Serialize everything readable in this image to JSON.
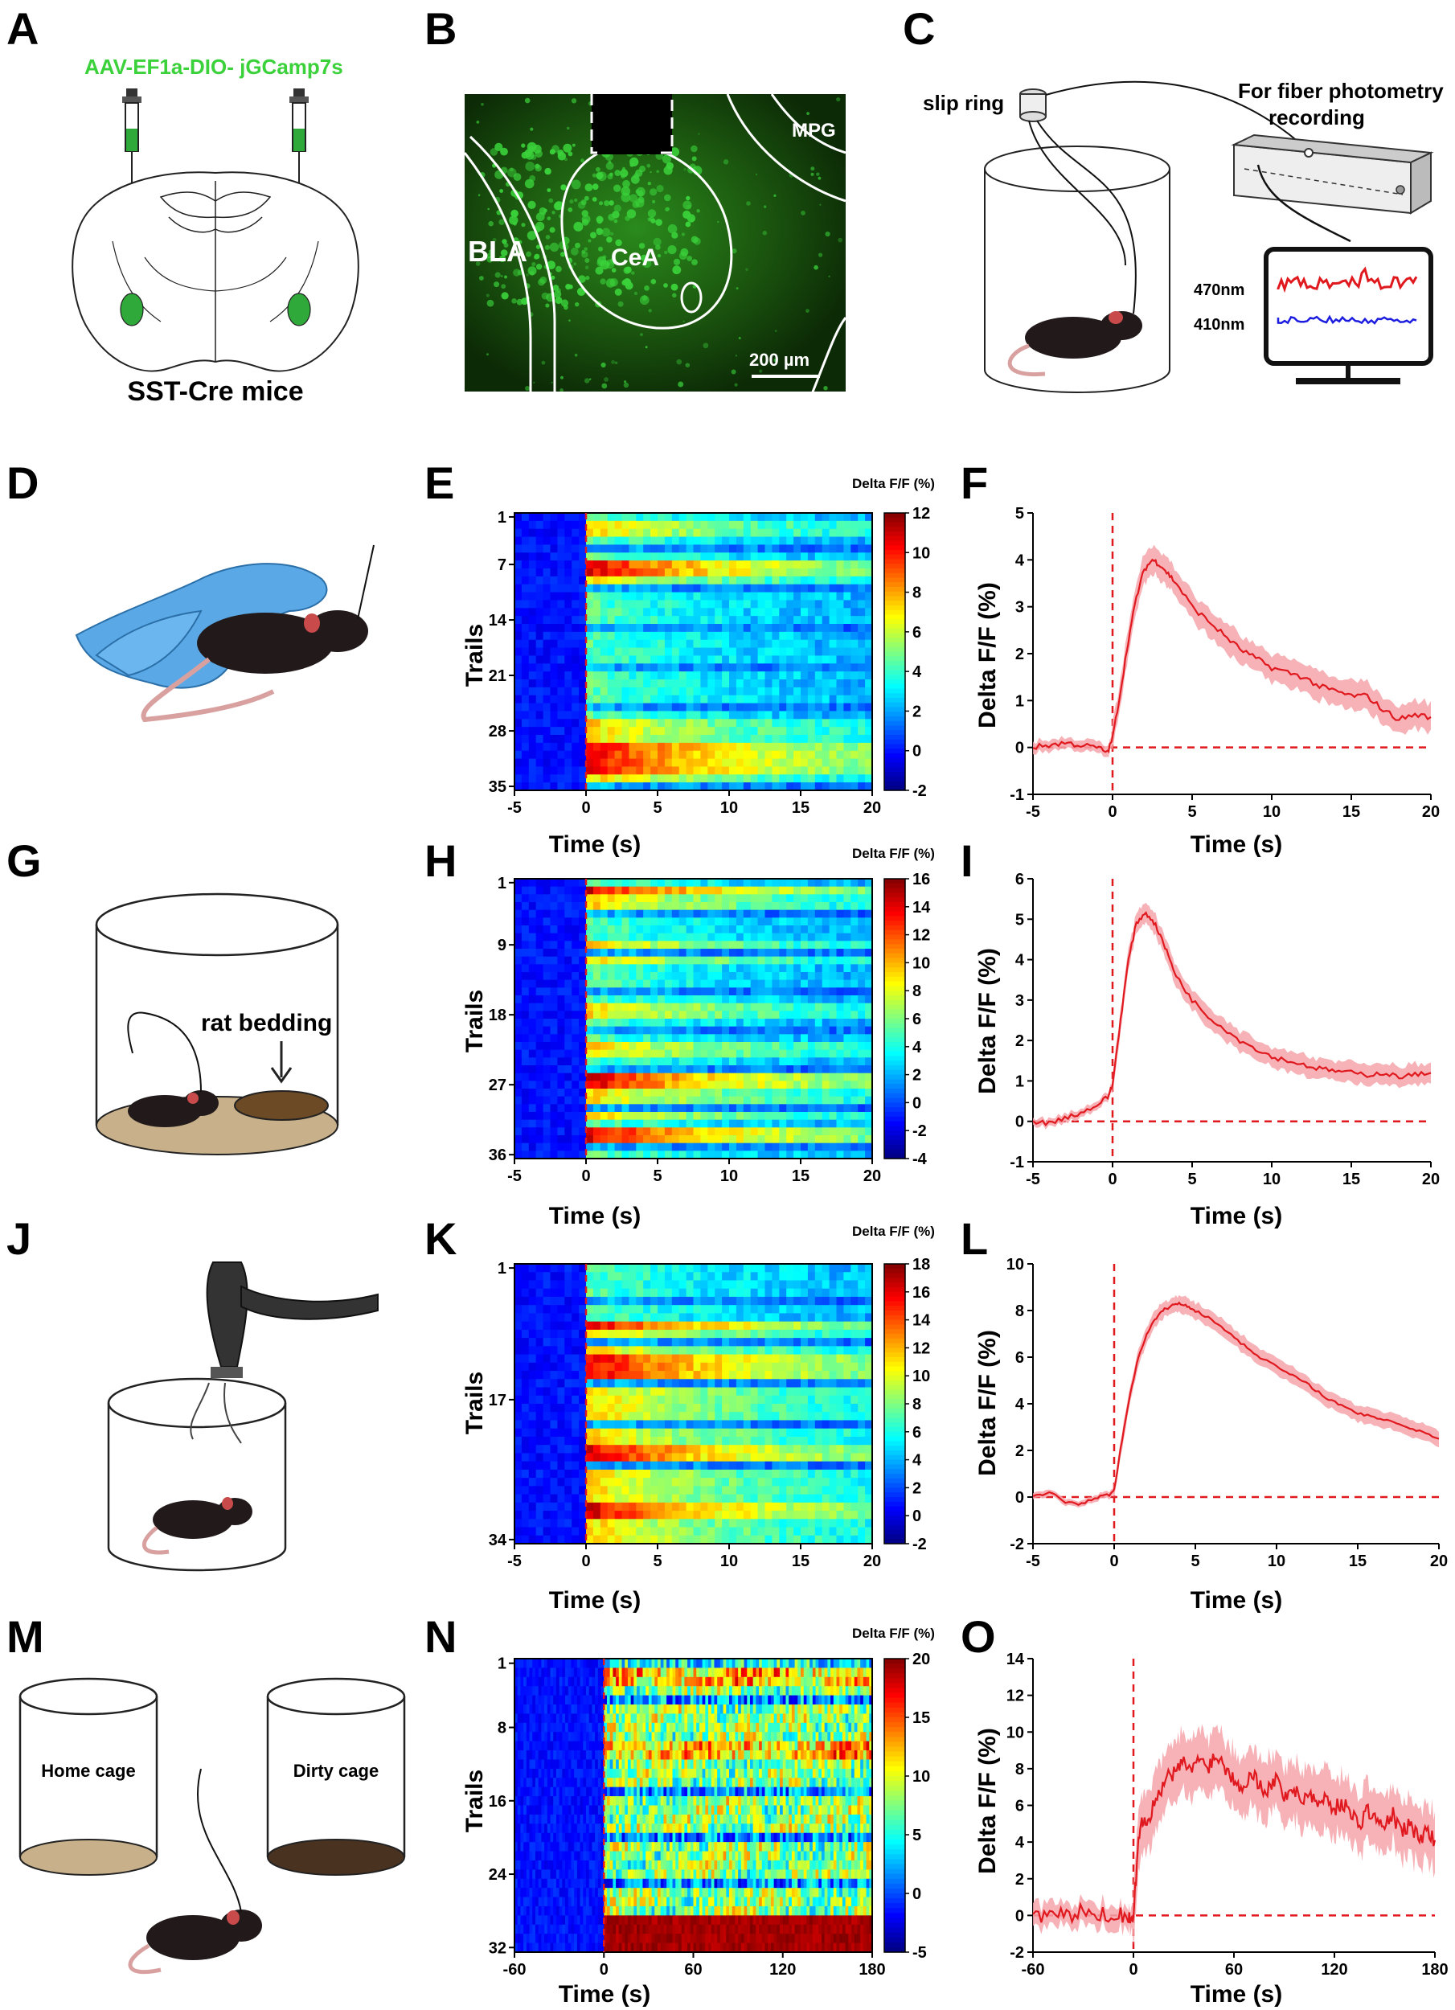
{
  "figure": {
    "panel_labels": [
      "A",
      "B",
      "C",
      "D",
      "E",
      "F",
      "G",
      "H",
      "I",
      "J",
      "K",
      "L",
      "M",
      "N",
      "O"
    ],
    "panel_a": {
      "virus": "AAV-EF1a-DIO- jGCamp7s",
      "mice": "SST-Cre mice"
    },
    "panel_b": {
      "regions": [
        "BLA",
        "CeA",
        "MPG"
      ],
      "scale_bar": "200 µm"
    },
    "panel_c": {
      "slip_ring": "slip ring",
      "recording_line1": "For fiber photometry",
      "recording_line2": "recording",
      "wavelength_470": "470nm",
      "wavelength_410": "410nm"
    },
    "panel_g": {
      "bedding": "rat bedding"
    },
    "panel_m": {
      "home": "Home cage",
      "dirty": "Dirty cage"
    },
    "colors": {
      "trace": "#e0191f",
      "band": "#f4a5aa",
      "dashed": "#e0191f",
      "cell_green": "#3ad13a"
    }
  },
  "chart_data": [
    {
      "id": "E",
      "type": "heatmap",
      "title": "",
      "colorbar_label": "Delta F/F (%)",
      "xlabel": "Time (s)",
      "ylabel": "Trails",
      "x_ticks": [
        "-5",
        "0",
        "5",
        "10",
        "15",
        "20"
      ],
      "y_ticks": [
        "1",
        "7",
        "14",
        "21",
        "28",
        "35"
      ],
      "colorbar_ticks": [
        "12",
        "10",
        "8",
        "6",
        "4",
        "2",
        "0",
        "-2"
      ],
      "xlim": [
        -5,
        20
      ],
      "ylim": [
        1,
        35
      ],
      "zlim": [
        -2,
        12
      ],
      "onset": 0
    },
    {
      "id": "F",
      "type": "line",
      "xlabel": "Time (s)",
      "ylabel": "Delta F/F (%)",
      "xlim": [
        -5,
        20
      ],
      "ylim": [
        -1,
        5
      ],
      "x_ticks": [
        "-5",
        "0",
        "5",
        "10",
        "15",
        "20"
      ],
      "y_ticks": [
        "-1",
        "0",
        "1",
        "2",
        "3",
        "4",
        "5"
      ],
      "series": [
        {
          "name": "mean",
          "x": [
            -5,
            -4,
            -3,
            -2,
            -1,
            -0.3,
            0,
            0.5,
            1,
            1.5,
            2,
            2.5,
            3,
            3.5,
            4,
            5,
            6,
            7,
            8,
            9,
            10,
            11,
            12,
            13,
            14,
            15,
            16,
            17,
            18,
            19,
            20
          ],
          "y": [
            0,
            0.05,
            0.1,
            0.05,
            0,
            -0.1,
            0.2,
            1.2,
            2.3,
            3.2,
            3.8,
            4.0,
            3.9,
            3.7,
            3.5,
            3.0,
            2.7,
            2.4,
            2.1,
            1.9,
            1.7,
            1.6,
            1.5,
            1.3,
            1.2,
            1.1,
            1.1,
            0.8,
            0.6,
            0.7,
            0.65
          ],
          "sem": 0.3
        }
      ]
    },
    {
      "id": "H",
      "type": "heatmap",
      "colorbar_label": "Delta F/F (%)",
      "xlabel": "Time (s)",
      "ylabel": "Trails",
      "x_ticks": [
        "-5",
        "0",
        "5",
        "10",
        "15",
        "20"
      ],
      "y_ticks": [
        "1",
        "9",
        "18",
        "27",
        "36"
      ],
      "colorbar_ticks": [
        "16",
        "14",
        "12",
        "10",
        "8",
        "6",
        "4",
        "2",
        "0",
        "-2",
        "-4"
      ],
      "xlim": [
        -5,
        20
      ],
      "ylim": [
        1,
        36
      ],
      "zlim": [
        -4,
        16
      ],
      "onset": 0
    },
    {
      "id": "I",
      "type": "line",
      "xlabel": "Time (s)",
      "ylabel": "Delta F/F (%)",
      "xlim": [
        -5,
        20
      ],
      "ylim": [
        -1,
        6
      ],
      "x_ticks": [
        "-5",
        "0",
        "5",
        "10",
        "15",
        "20"
      ],
      "y_ticks": [
        "-1",
        "0",
        "1",
        "2",
        "3",
        "4",
        "5",
        "6"
      ],
      "series": [
        {
          "name": "mean",
          "x": [
            -5,
            -4,
            -3,
            -2,
            -1,
            -0.3,
            0,
            0.5,
            1,
            1.5,
            2,
            2.5,
            3,
            3.5,
            4,
            5,
            6,
            7,
            8,
            9,
            10,
            11,
            12,
            13,
            14,
            15,
            16,
            17,
            18,
            19,
            20
          ],
          "y": [
            0,
            -0.05,
            0.1,
            0.2,
            0.4,
            0.6,
            0.9,
            2.5,
            4.0,
            4.9,
            5.15,
            5.0,
            4.6,
            4.1,
            3.6,
            3.0,
            2.6,
            2.3,
            2.0,
            1.8,
            1.6,
            1.5,
            1.4,
            1.3,
            1.25,
            1.2,
            1.15,
            1.2,
            1.1,
            1.15,
            1.2
          ],
          "sem": 0.25
        }
      ]
    },
    {
      "id": "K",
      "type": "heatmap",
      "colorbar_label": "Delta F/F (%)",
      "xlabel": "Time (s)",
      "ylabel": "Trails",
      "x_ticks": [
        "-5",
        "0",
        "5",
        "10",
        "15",
        "20"
      ],
      "y_ticks": [
        "1",
        "17",
        "34"
      ],
      "colorbar_ticks": [
        "18",
        "16",
        "14",
        "12",
        "10",
        "8",
        "6",
        "4",
        "2",
        "0",
        "-2"
      ],
      "xlim": [
        -5,
        20
      ],
      "ylim": [
        1,
        34
      ],
      "zlim": [
        -2,
        18
      ],
      "onset": 0
    },
    {
      "id": "L",
      "type": "line",
      "xlabel": "Time (s)",
      "ylabel": "Delta F/F (%)",
      "xlim": [
        -5,
        20
      ],
      "ylim": [
        -2,
        10
      ],
      "x_ticks": [
        "-5",
        "0",
        "5",
        "10",
        "15",
        "20"
      ],
      "y_ticks": [
        "-2",
        "0",
        "2",
        "4",
        "6",
        "8",
        "10"
      ],
      "series": [
        {
          "name": "mean",
          "x": [
            -5,
            -4,
            -3,
            -2,
            -1,
            -0.3,
            0,
            0.5,
            1,
            1.5,
            2,
            2.5,
            3,
            3.5,
            4,
            4.5,
            5,
            6,
            7,
            8,
            9,
            10,
            11,
            12,
            13,
            14,
            15,
            16,
            17,
            18,
            19,
            20
          ],
          "y": [
            0,
            0.2,
            -0.2,
            -0.3,
            0,
            0.1,
            0.3,
            2.5,
            4.5,
            6.0,
            7.0,
            7.6,
            8.0,
            8.2,
            8.3,
            8.2,
            8.0,
            7.6,
            7.1,
            6.5,
            6.0,
            5.6,
            5.2,
            4.8,
            4.3,
            3.9,
            3.6,
            3.4,
            3.3,
            3.0,
            2.8,
            2.5
          ],
          "sem": 0.35
        }
      ]
    },
    {
      "id": "N",
      "type": "heatmap",
      "colorbar_label": "Delta F/F (%)",
      "xlabel": "Time (s)",
      "ylabel": "Trails",
      "x_ticks": [
        "-60",
        "0",
        "60",
        "120",
        "180"
      ],
      "y_ticks": [
        "1",
        "8",
        "16",
        "24",
        "32"
      ],
      "colorbar_ticks": [
        "20",
        "15",
        "10",
        "5",
        "0",
        "-5"
      ],
      "xlim": [
        -60,
        180
      ],
      "ylim": [
        1,
        32
      ],
      "zlim": [
        -5,
        20
      ],
      "onset": 0
    },
    {
      "id": "O",
      "type": "line",
      "xlabel": "Time (s)",
      "ylabel": "Delta F/F (%)",
      "xlim": [
        -60,
        180
      ],
      "ylim": [
        -2,
        14
      ],
      "x_ticks": [
        "-60",
        "0",
        "60",
        "120",
        "180"
      ],
      "y_ticks": [
        "-2",
        "0",
        "2",
        "4",
        "6",
        "8",
        "10",
        "12",
        "14"
      ],
      "series": [
        {
          "name": "mean",
          "x": [
            -60,
            -50,
            -40,
            -30,
            -20,
            -10,
            -3,
            0,
            3,
            6,
            10,
            15,
            20,
            25,
            30,
            35,
            40,
            45,
            50,
            55,
            60,
            65,
            70,
            75,
            80,
            85,
            90,
            95,
            100,
            105,
            110,
            115,
            120,
            125,
            130,
            135,
            140,
            145,
            150,
            155,
            160,
            165,
            170,
            175,
            180
          ],
          "y": [
            0,
            0.1,
            -0.1,
            0.2,
            0,
            0.1,
            0,
            -0.3,
            4.5,
            5.2,
            5.5,
            6.5,
            7.5,
            7.8,
            8.3,
            8.0,
            8.5,
            8.2,
            8.8,
            8.0,
            7.5,
            7.0,
            7.8,
            7.2,
            6.8,
            7.5,
            6.5,
            7.0,
            6.2,
            6.8,
            6.0,
            6.5,
            5.8,
            6.2,
            5.5,
            5.0,
            5.8,
            5.2,
            4.8,
            5.5,
            4.5,
            5.0,
            4.2,
            4.6,
            4.1
          ],
          "sem": 1.6
        }
      ]
    }
  ]
}
